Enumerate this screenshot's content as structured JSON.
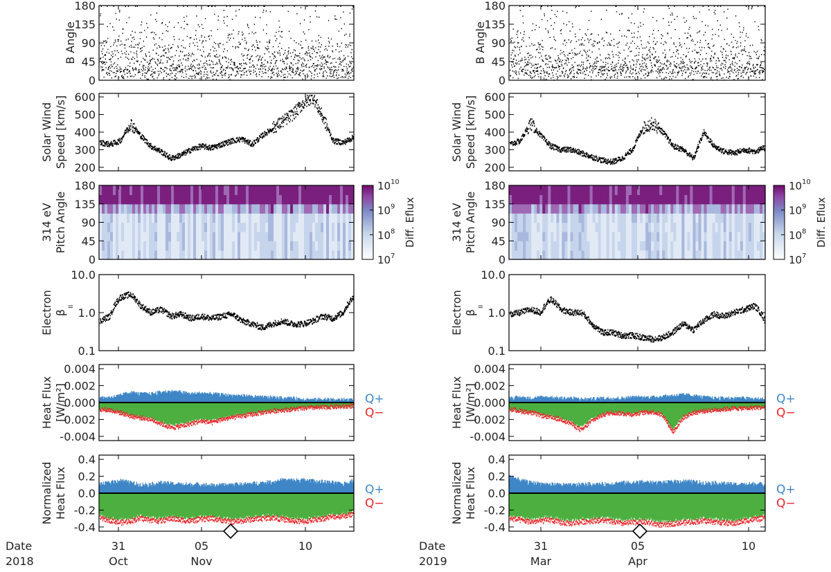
{
  "chart_data": [
    {
      "column": "left",
      "type": "scatter",
      "date_label": "Date",
      "year_label": "2018",
      "x_ticks": [
        {
          "day": "31",
          "month": "Oct"
        },
        {
          "day": "05",
          "month": "Nov"
        },
        {
          "day": "10",
          "month": ""
        }
      ],
      "panels": [
        {
          "key": "bangle",
          "ylabel": [
            "B Angle"
          ],
          "scale": "linear",
          "ylim": [
            0,
            180
          ],
          "ticks": [
            "0",
            "45",
            "90",
            "135",
            "180"
          ]
        },
        {
          "key": "speed",
          "ylabel": [
            "Solar Wind",
            "Speed [km/s]"
          ],
          "scale": "linear",
          "ylim": [
            180,
            620
          ],
          "ticks": [
            "200",
            "300",
            "400",
            "500",
            "600"
          ]
        },
        {
          "key": "pad",
          "type": "heatmap",
          "ylabel": [
            "314 eV",
            "Pitch Angle"
          ],
          "scale": "linear",
          "ylim": [
            0,
            180
          ],
          "ticks": [
            "0",
            "45",
            "90",
            "135",
            "180"
          ],
          "colorbar_label": "Diff. Eflux",
          "colorbar_ticks": [
            "10",
            "10",
            "10",
            "10"
          ],
          "colorbar_exponents": [
            "7",
            "8",
            "9",
            "10"
          ]
        },
        {
          "key": "beta",
          "ylabel": [
            "Electron",
            "β"
          ],
          "ylabel_sub": "II",
          "scale": "log",
          "ylim": [
            0.1,
            10
          ],
          "ticks": [
            "0.1",
            "1.0",
            "10.0"
          ]
        },
        {
          "key": "heat",
          "ylabel": [
            "Heat Flux",
            "[W/m²]"
          ],
          "scale": "linear",
          "ylim": [
            -0.0045,
            0.0045
          ],
          "ticks": [
            "-0.004",
            "-0.002",
            "0.000",
            "0.002",
            "0.004"
          ],
          "legend": [
            "Q+",
            "Q−"
          ]
        },
        {
          "key": "norm",
          "ylabel": [
            "Normalized",
            "Heat Flux"
          ],
          "scale": "linear",
          "ylim": [
            -0.45,
            0.45
          ],
          "ticks": [
            "-0.4",
            "-0.2",
            "0.0",
            "0.2",
            "0.4"
          ],
          "legend": [
            "Q+",
            "Q−"
          ]
        }
      ],
      "series": {
        "speed": [
          340,
          330,
          350,
          450,
          380,
          320,
          290,
          250,
          270,
          300,
          320,
          310,
          330,
          350,
          360,
          330,
          380,
          420,
          460,
          500,
          560,
          600,
          480,
          350,
          340,
          370
        ],
        "beta": [
          0.6,
          0.8,
          2.5,
          3.0,
          1.5,
          1.0,
          1.2,
          0.8,
          0.9,
          0.7,
          0.8,
          0.7,
          0.8,
          0.9,
          0.6,
          0.5,
          0.4,
          0.5,
          0.6,
          0.5,
          0.5,
          0.6,
          0.8,
          0.7,
          1.0,
          2.5
        ],
        "heat_pos": [
          0.0005,
          0.0006,
          0.0008,
          0.0012,
          0.001,
          0.001,
          0.0012,
          0.0013,
          0.0012,
          0.001,
          0.0011,
          0.001,
          0.0009,
          0.0008,
          0.0008,
          0.0007,
          0.0006,
          0.0006,
          0.0005,
          0.0005,
          0.0004,
          0.0003,
          0.0004,
          0.0003,
          0.0003,
          0.0003
        ],
        "heat_neg": [
          -0.0008,
          -0.0009,
          -0.0012,
          -0.0016,
          -0.0018,
          -0.002,
          -0.0025,
          -0.003,
          -0.0028,
          -0.0025,
          -0.0022,
          -0.0024,
          -0.002,
          -0.0018,
          -0.0016,
          -0.0014,
          -0.0012,
          -0.001,
          -0.0009,
          -0.0008,
          -0.0007,
          -0.0006,
          -0.0006,
          -0.0005,
          -0.0005,
          -0.0004
        ],
        "norm_pos": [
          0.1,
          0.12,
          0.15,
          0.12,
          0.1,
          0.1,
          0.12,
          0.11,
          0.1,
          0.1,
          0.1,
          0.09,
          0.09,
          0.1,
          0.1,
          0.11,
          0.12,
          0.13,
          0.15,
          0.15,
          0.15,
          0.14,
          0.13,
          0.12,
          0.1,
          0.15
        ],
        "norm_neg": [
          -0.3,
          -0.32,
          -0.35,
          -0.33,
          -0.3,
          -0.32,
          -0.33,
          -0.3,
          -0.32,
          -0.33,
          -0.31,
          -0.3,
          -0.32,
          -0.34,
          -0.33,
          -0.31,
          -0.3,
          -0.29,
          -0.31,
          -0.33,
          -0.34,
          -0.32,
          -0.3,
          -0.28,
          -0.27,
          -0.25
        ]
      }
    },
    {
      "column": "right",
      "type": "scatter",
      "date_label": "Date",
      "year_label": "2019",
      "x_ticks": [
        {
          "day": "31",
          "month": "Mar"
        },
        {
          "day": "05",
          "month": "Apr"
        },
        {
          "day": "10",
          "month": ""
        }
      ],
      "panels": [
        {
          "key": "bangle",
          "ylabel": [
            "B Angle"
          ],
          "scale": "linear",
          "ylim": [
            0,
            180
          ],
          "ticks": [
            "0",
            "45",
            "90",
            "135",
            "180"
          ]
        },
        {
          "key": "speed",
          "ylabel": [
            "Solar Wind",
            "Speed [km/s]"
          ],
          "scale": "linear",
          "ylim": [
            180,
            620
          ],
          "ticks": [
            "200",
            "300",
            "400",
            "500",
            "600"
          ]
        },
        {
          "key": "pad",
          "type": "heatmap",
          "ylabel": [
            "314 eV",
            "Pitch Angle"
          ],
          "scale": "linear",
          "ylim": [
            0,
            180
          ],
          "ticks": [
            "0",
            "45",
            "90",
            "135",
            "180"
          ],
          "colorbar_label": "Diff. Eflux",
          "colorbar_ticks": [
            "10",
            "10",
            "10",
            "10"
          ],
          "colorbar_exponents": [
            "7",
            "8",
            "9",
            "10"
          ]
        },
        {
          "key": "beta",
          "ylabel": [
            "Electron",
            "β"
          ],
          "ylabel_sub": "II",
          "scale": "log",
          "ylim": [
            0.1,
            10
          ],
          "ticks": [
            "0.1",
            "1.0",
            "10.0"
          ]
        },
        {
          "key": "heat",
          "ylabel": [
            "Heat Flux",
            "[W/m²]"
          ],
          "scale": "linear",
          "ylim": [
            -0.0045,
            0.0045
          ],
          "ticks": [
            "-0.004",
            "-0.002",
            "0.000",
            "0.002",
            "0.004"
          ],
          "legend": [
            "Q+",
            "Q−"
          ]
        },
        {
          "key": "norm",
          "ylabel": [
            "Normalized",
            "Heat Flux"
          ],
          "scale": "linear",
          "ylim": [
            -0.45,
            0.45
          ],
          "ticks": [
            "-0.4",
            "-0.2",
            "0.0",
            "0.2",
            "0.4"
          ],
          "legend": [
            "Q+",
            "Q−"
          ]
        }
      ],
      "series": {
        "speed": [
          330,
          350,
          450,
          380,
          320,
          300,
          300,
          280,
          260,
          240,
          230,
          250,
          300,
          420,
          450,
          400,
          320,
          300,
          250,
          400,
          320,
          290,
          280,
          300,
          290,
          310
        ],
        "beta": [
          0.9,
          1.0,
          1.2,
          1.0,
          2.2,
          1.2,
          1.0,
          1.0,
          0.5,
          0.3,
          0.3,
          0.25,
          0.25,
          0.22,
          0.2,
          0.22,
          0.3,
          0.5,
          0.35,
          0.6,
          0.9,
          0.8,
          1.0,
          1.2,
          1.5,
          0.6
        ],
        "heat_pos": [
          0.0005,
          0.0006,
          0.0005,
          0.0006,
          0.0006,
          0.0005,
          0.0005,
          0.0004,
          0.0004,
          0.0005,
          0.0005,
          0.0005,
          0.0006,
          0.0006,
          0.0006,
          0.0007,
          0.0008,
          0.0009,
          0.0008,
          0.0006,
          0.0005,
          0.0005,
          0.0005,
          0.0005,
          0.0004,
          0.0004
        ],
        "heat_neg": [
          -0.0008,
          -0.001,
          -0.0012,
          -0.0015,
          -0.0018,
          -0.002,
          -0.0025,
          -0.0033,
          -0.0022,
          -0.0015,
          -0.0012,
          -0.0013,
          -0.0014,
          -0.0012,
          -0.0011,
          -0.0015,
          -0.0035,
          -0.0018,
          -0.0012,
          -0.001,
          -0.0009,
          -0.0008,
          -0.0007,
          -0.0007,
          -0.0006,
          -0.0006
        ],
        "norm_pos": [
          0.2,
          0.15,
          0.12,
          0.11,
          0.1,
          0.1,
          0.09,
          0.1,
          0.1,
          0.1,
          0.11,
          0.12,
          0.12,
          0.13,
          0.12,
          0.12,
          0.13,
          0.14,
          0.13,
          0.12,
          0.12,
          0.11,
          0.1,
          0.1,
          0.11,
          0.1
        ],
        "norm_neg": [
          -0.3,
          -0.32,
          -0.34,
          -0.33,
          -0.32,
          -0.35,
          -0.36,
          -0.34,
          -0.33,
          -0.32,
          -0.34,
          -0.36,
          -0.35,
          -0.34,
          -0.36,
          -0.38,
          -0.36,
          -0.35,
          -0.34,
          -0.33,
          -0.34,
          -0.35,
          -0.36,
          -0.33,
          -0.31,
          -0.3
        ]
      }
    }
  ]
}
